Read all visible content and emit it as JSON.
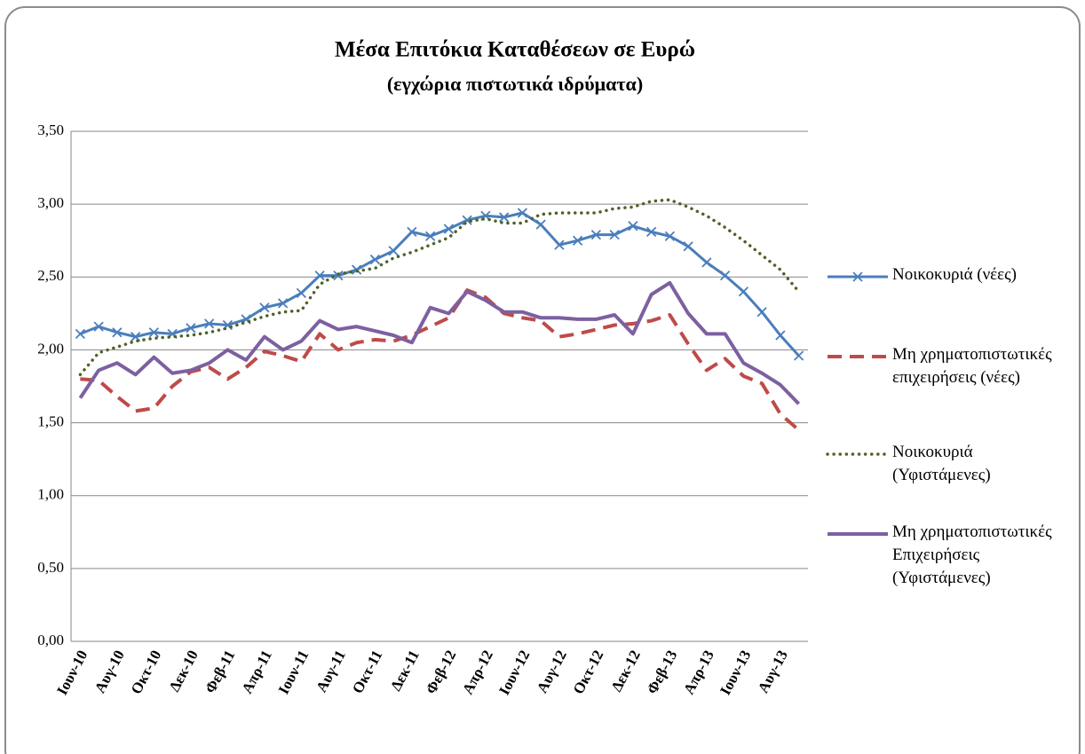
{
  "chart_data": {
    "type": "line",
    "title": "Μέσα Επιτόκια Καταθέσεων σε Ευρώ",
    "subtitle": "(εγχώρια πιστωτικά ιδρύματα)",
    "categories": [
      "Ιουν-10",
      null,
      "Αυγ-10",
      null,
      "Οκτ-10",
      null,
      "Δεκ-10",
      null,
      "Φεβ-11",
      null,
      "Απρ-11",
      null,
      "Ιουν-11",
      null,
      "Αυγ-11",
      null,
      "Οκτ-11",
      null,
      "Δεκ-11",
      null,
      "Φεβ-12",
      null,
      "Απρ-12",
      null,
      "Ιουν-12",
      null,
      "Αυγ-12",
      null,
      "Οκτ-12",
      null,
      "Δεκ-12",
      null,
      "Φεβ-13",
      null,
      "Απρ-13",
      null,
      "Ιουν-13",
      null,
      "Αυγ-13",
      null
    ],
    "series": [
      {
        "name": "Νοικοκυριά (νέες)",
        "color": "#4a7ebb",
        "style": "solid-x",
        "values": [
          2.11,
          2.16,
          2.12,
          2.09,
          2.12,
          2.11,
          2.15,
          2.18,
          2.17,
          2.21,
          2.29,
          2.32,
          2.39,
          2.51,
          2.51,
          2.55,
          2.62,
          2.68,
          2.81,
          2.78,
          2.83,
          2.89,
          2.92,
          2.91,
          2.94,
          2.86,
          2.72,
          2.75,
          2.79,
          2.79,
          2.85,
          2.81,
          2.78,
          2.71,
          2.6,
          2.51,
          2.4,
          2.26,
          2.1,
          1.96
        ]
      },
      {
        "name": "Μη χρηματοπιστωτικές επιχειρήσεις (νέες)",
        "color": "#be4b48",
        "style": "dashed",
        "values": [
          1.8,
          1.79,
          1.68,
          1.58,
          1.6,
          1.75,
          1.85,
          1.88,
          1.8,
          1.88,
          1.99,
          1.96,
          1.92,
          2.11,
          2.0,
          2.05,
          2.07,
          2.06,
          2.1,
          2.16,
          2.22,
          2.41,
          2.36,
          2.25,
          2.22,
          2.2,
          2.09,
          2.11,
          2.14,
          2.17,
          2.18,
          2.2,
          2.24,
          2.04,
          1.86,
          1.94,
          1.82,
          1.77,
          1.56,
          1.45
        ]
      },
      {
        "name": "Νοικοκυριά (Υφιστάμενες)",
        "color": "#4f6228",
        "style": "dotted",
        "values": [
          1.83,
          1.98,
          2.02,
          2.06,
          2.08,
          2.09,
          2.1,
          2.12,
          2.15,
          2.19,
          2.23,
          2.26,
          2.27,
          2.45,
          2.52,
          2.54,
          2.56,
          2.63,
          2.67,
          2.72,
          2.77,
          2.88,
          2.9,
          2.87,
          2.87,
          2.93,
          2.94,
          2.94,
          2.94,
          2.97,
          2.98,
          3.02,
          3.03,
          2.98,
          2.92,
          2.84,
          2.75,
          2.65,
          2.55,
          2.4
        ]
      },
      {
        "name": "Μη χρηματοπιστωτικές Επιχειρήσεις (Υφιστάμενες)",
        "color": "#7d60a0",
        "style": "solid",
        "values": [
          1.67,
          1.86,
          1.91,
          1.83,
          1.95,
          1.84,
          1.86,
          1.91,
          2.0,
          1.93,
          2.09,
          2.0,
          2.06,
          2.2,
          2.14,
          2.16,
          2.13,
          2.1,
          2.05,
          2.29,
          2.25,
          2.4,
          2.34,
          2.26,
          2.26,
          2.22,
          2.22,
          2.21,
          2.21,
          2.24,
          2.11,
          2.38,
          2.46,
          2.25,
          2.11,
          2.11,
          1.91,
          1.84,
          1.76,
          1.63
        ]
      }
    ],
    "ylim": [
      0,
      3.5
    ],
    "yticks": [
      {
        "value": 0,
        "label": "0,00"
      },
      {
        "value": 0.5,
        "label": "0,50"
      },
      {
        "value": 1,
        "label": "1,00"
      },
      {
        "value": 1.5,
        "label": "1,50"
      },
      {
        "value": 2,
        "label": "2,00"
      },
      {
        "value": 2.5,
        "label": "2,50"
      },
      {
        "value": 3,
        "label": "3,00"
      },
      {
        "value": 3.5,
        "label": "3,50"
      }
    ],
    "grid": true,
    "legend": "right"
  }
}
